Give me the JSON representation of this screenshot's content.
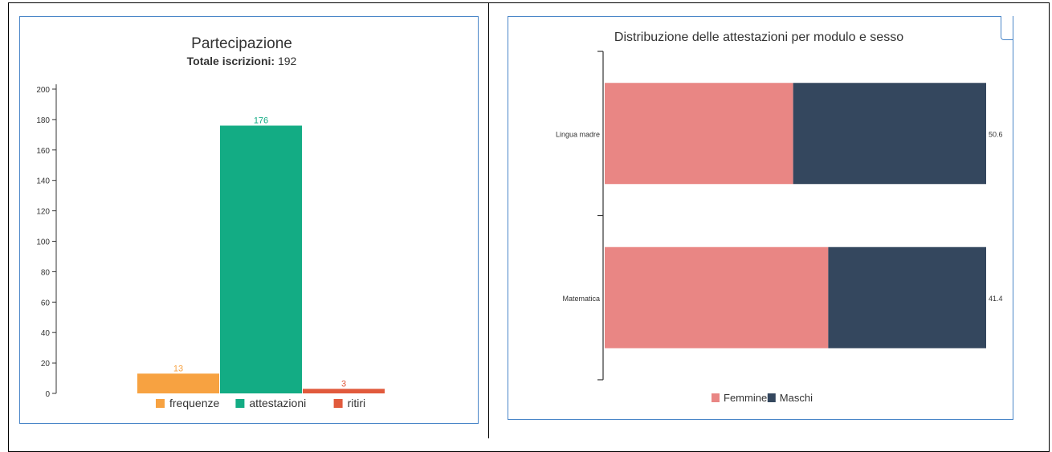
{
  "chart_data": [
    {
      "type": "bar",
      "title": "Partecipazione",
      "subtitle_label": "Totale iscrizioni:",
      "subtitle_value": "192",
      "categories": [
        "frequenze",
        "attestazioni",
        "ritiri"
      ],
      "values": [
        13,
        176,
        3
      ],
      "colors": [
        "#f7a241",
        "#13ac84",
        "#e15a3c"
      ],
      "ylim": [
        0,
        200
      ],
      "yticks": [
        0,
        20,
        40,
        60,
        80,
        100,
        120,
        140,
        160,
        180,
        200
      ],
      "legend": "bottom"
    },
    {
      "type": "bar",
      "orientation": "horizontal",
      "stacked": true,
      "title": "Distribuzione delle attestazioni per modulo e sesso",
      "categories": [
        "Lingua madre",
        "Matematica"
      ],
      "series": [
        {
          "name": "Femmine",
          "values": [
            49.4,
            58.6
          ],
          "color": "#e98684"
        },
        {
          "name": "Maschi",
          "values": [
            50.6,
            41.4
          ],
          "color": "#34475e"
        }
      ],
      "xlim": [
        0,
        100
      ],
      "legend": "bottom"
    }
  ]
}
